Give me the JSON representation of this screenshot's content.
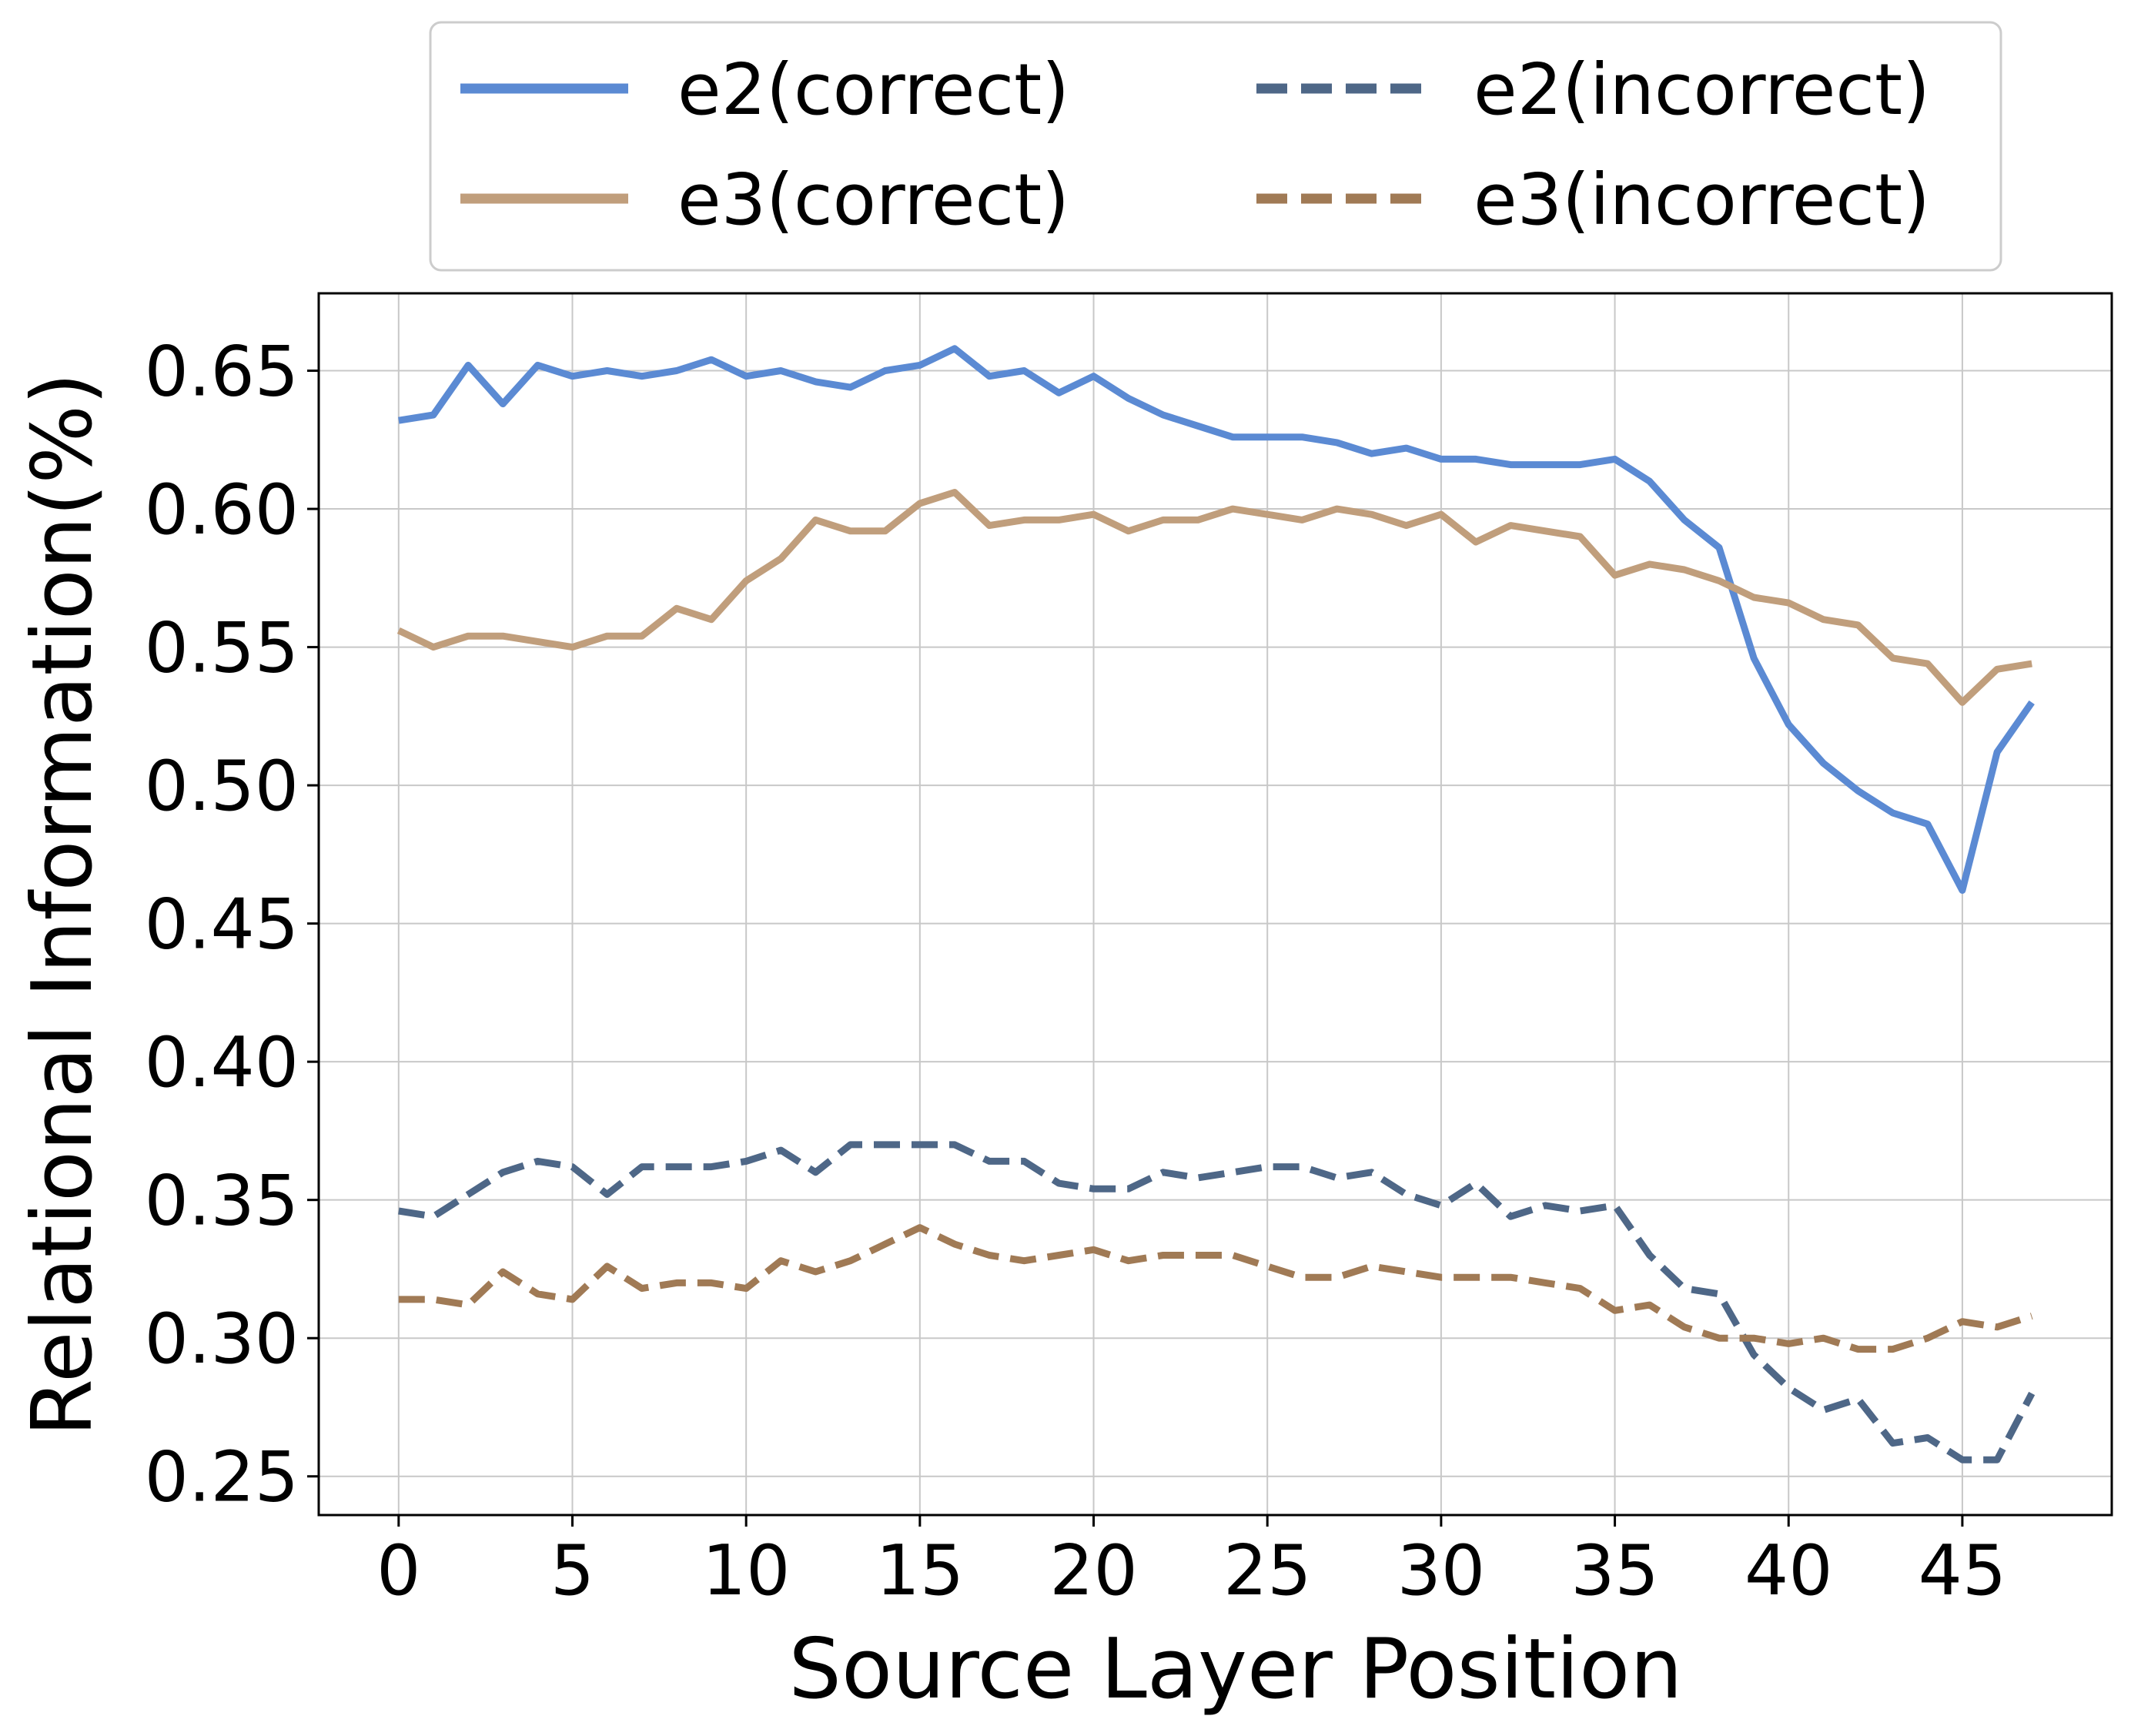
{
  "chart_data": {
    "type": "line",
    "xlabel": "Source Layer Position",
    "ylabel": "Relational Information(%)",
    "xlim": [
      -2.3,
      49.3
    ],
    "ylim": [
      0.236,
      0.678
    ],
    "x_ticks": [
      "0",
      "5",
      "10",
      "15",
      "20",
      "25",
      "30",
      "35",
      "40",
      "45"
    ],
    "y_ticks": [
      "0.25",
      "0.30",
      "0.35",
      "0.40",
      "0.45",
      "0.50",
      "0.55",
      "0.60",
      "0.65"
    ],
    "grid": true,
    "legend_placement": "top-center, above plot",
    "x": [
      0,
      1,
      2,
      3,
      4,
      5,
      6,
      7,
      8,
      9,
      10,
      11,
      12,
      13,
      14,
      15,
      16,
      17,
      18,
      19,
      20,
      21,
      22,
      23,
      24,
      25,
      26,
      27,
      28,
      29,
      30,
      31,
      32,
      33,
      34,
      35,
      36,
      37,
      38,
      39,
      40,
      41,
      42,
      43,
      44,
      45,
      46,
      47
    ],
    "series": [
      {
        "name": "e2(correct)",
        "color": "#5b8ad3",
        "style": "solid",
        "values": [
          0.632,
          0.634,
          0.652,
          0.638,
          0.652,
          0.648,
          0.65,
          0.648,
          0.65,
          0.654,
          0.648,
          0.65,
          0.646,
          0.644,
          0.65,
          0.652,
          0.658,
          0.648,
          0.65,
          0.642,
          0.648,
          0.64,
          0.634,
          0.63,
          0.626,
          0.626,
          0.626,
          0.624,
          0.62,
          0.622,
          0.618,
          0.618,
          0.616,
          0.616,
          0.616,
          0.618,
          0.61,
          0.596,
          0.586,
          0.546,
          0.522,
          0.508,
          0.498,
          0.49,
          0.486,
          0.462,
          0.512,
          0.53
        ]
      },
      {
        "name": "e3(correct)",
        "color": "#c09e7c",
        "style": "solid",
        "values": [
          0.556,
          0.55,
          0.554,
          0.554,
          0.552,
          0.55,
          0.554,
          0.554,
          0.564,
          0.56,
          0.574,
          0.582,
          0.596,
          0.592,
          0.592,
          0.602,
          0.606,
          0.594,
          0.596,
          0.596,
          0.598,
          0.592,
          0.596,
          0.596,
          0.6,
          0.598,
          0.596,
          0.6,
          0.598,
          0.594,
          0.598,
          0.588,
          0.594,
          0.592,
          0.59,
          0.576,
          0.58,
          0.578,
          0.574,
          0.568,
          0.566,
          0.56,
          0.558,
          0.546,
          0.544,
          0.53,
          0.542,
          0.544
        ]
      },
      {
        "name": "e2(incorrect)",
        "color": "#4e6787",
        "style": "dashed",
        "values": [
          0.346,
          0.344,
          0.352,
          0.36,
          0.364,
          0.362,
          0.352,
          0.362,
          0.362,
          0.362,
          0.364,
          0.368,
          0.36,
          0.37,
          0.37,
          0.37,
          0.37,
          0.364,
          0.364,
          0.356,
          0.354,
          0.354,
          0.36,
          0.358,
          0.36,
          0.362,
          0.362,
          0.358,
          0.36,
          0.352,
          0.348,
          0.356,
          0.344,
          0.348,
          0.346,
          0.348,
          0.33,
          0.318,
          0.316,
          0.294,
          0.282,
          0.274,
          0.278,
          0.262,
          0.264,
          0.256,
          0.256,
          0.28
        ]
      },
      {
        "name": "e3(incorrect)",
        "color": "#a07a55",
        "style": "dashed",
        "values": [
          0.314,
          0.314,
          0.312,
          0.324,
          0.316,
          0.314,
          0.326,
          0.318,
          0.32,
          0.32,
          0.318,
          0.328,
          0.324,
          0.328,
          0.334,
          0.34,
          0.334,
          0.33,
          0.328,
          0.33,
          0.332,
          0.328,
          0.33,
          0.33,
          0.33,
          0.326,
          0.322,
          0.322,
          0.326,
          0.324,
          0.322,
          0.322,
          0.322,
          0.32,
          0.318,
          0.31,
          0.312,
          0.304,
          0.3,
          0.3,
          0.298,
          0.3,
          0.296,
          0.296,
          0.3,
          0.306,
          0.304,
          0.308
        ]
      }
    ]
  }
}
